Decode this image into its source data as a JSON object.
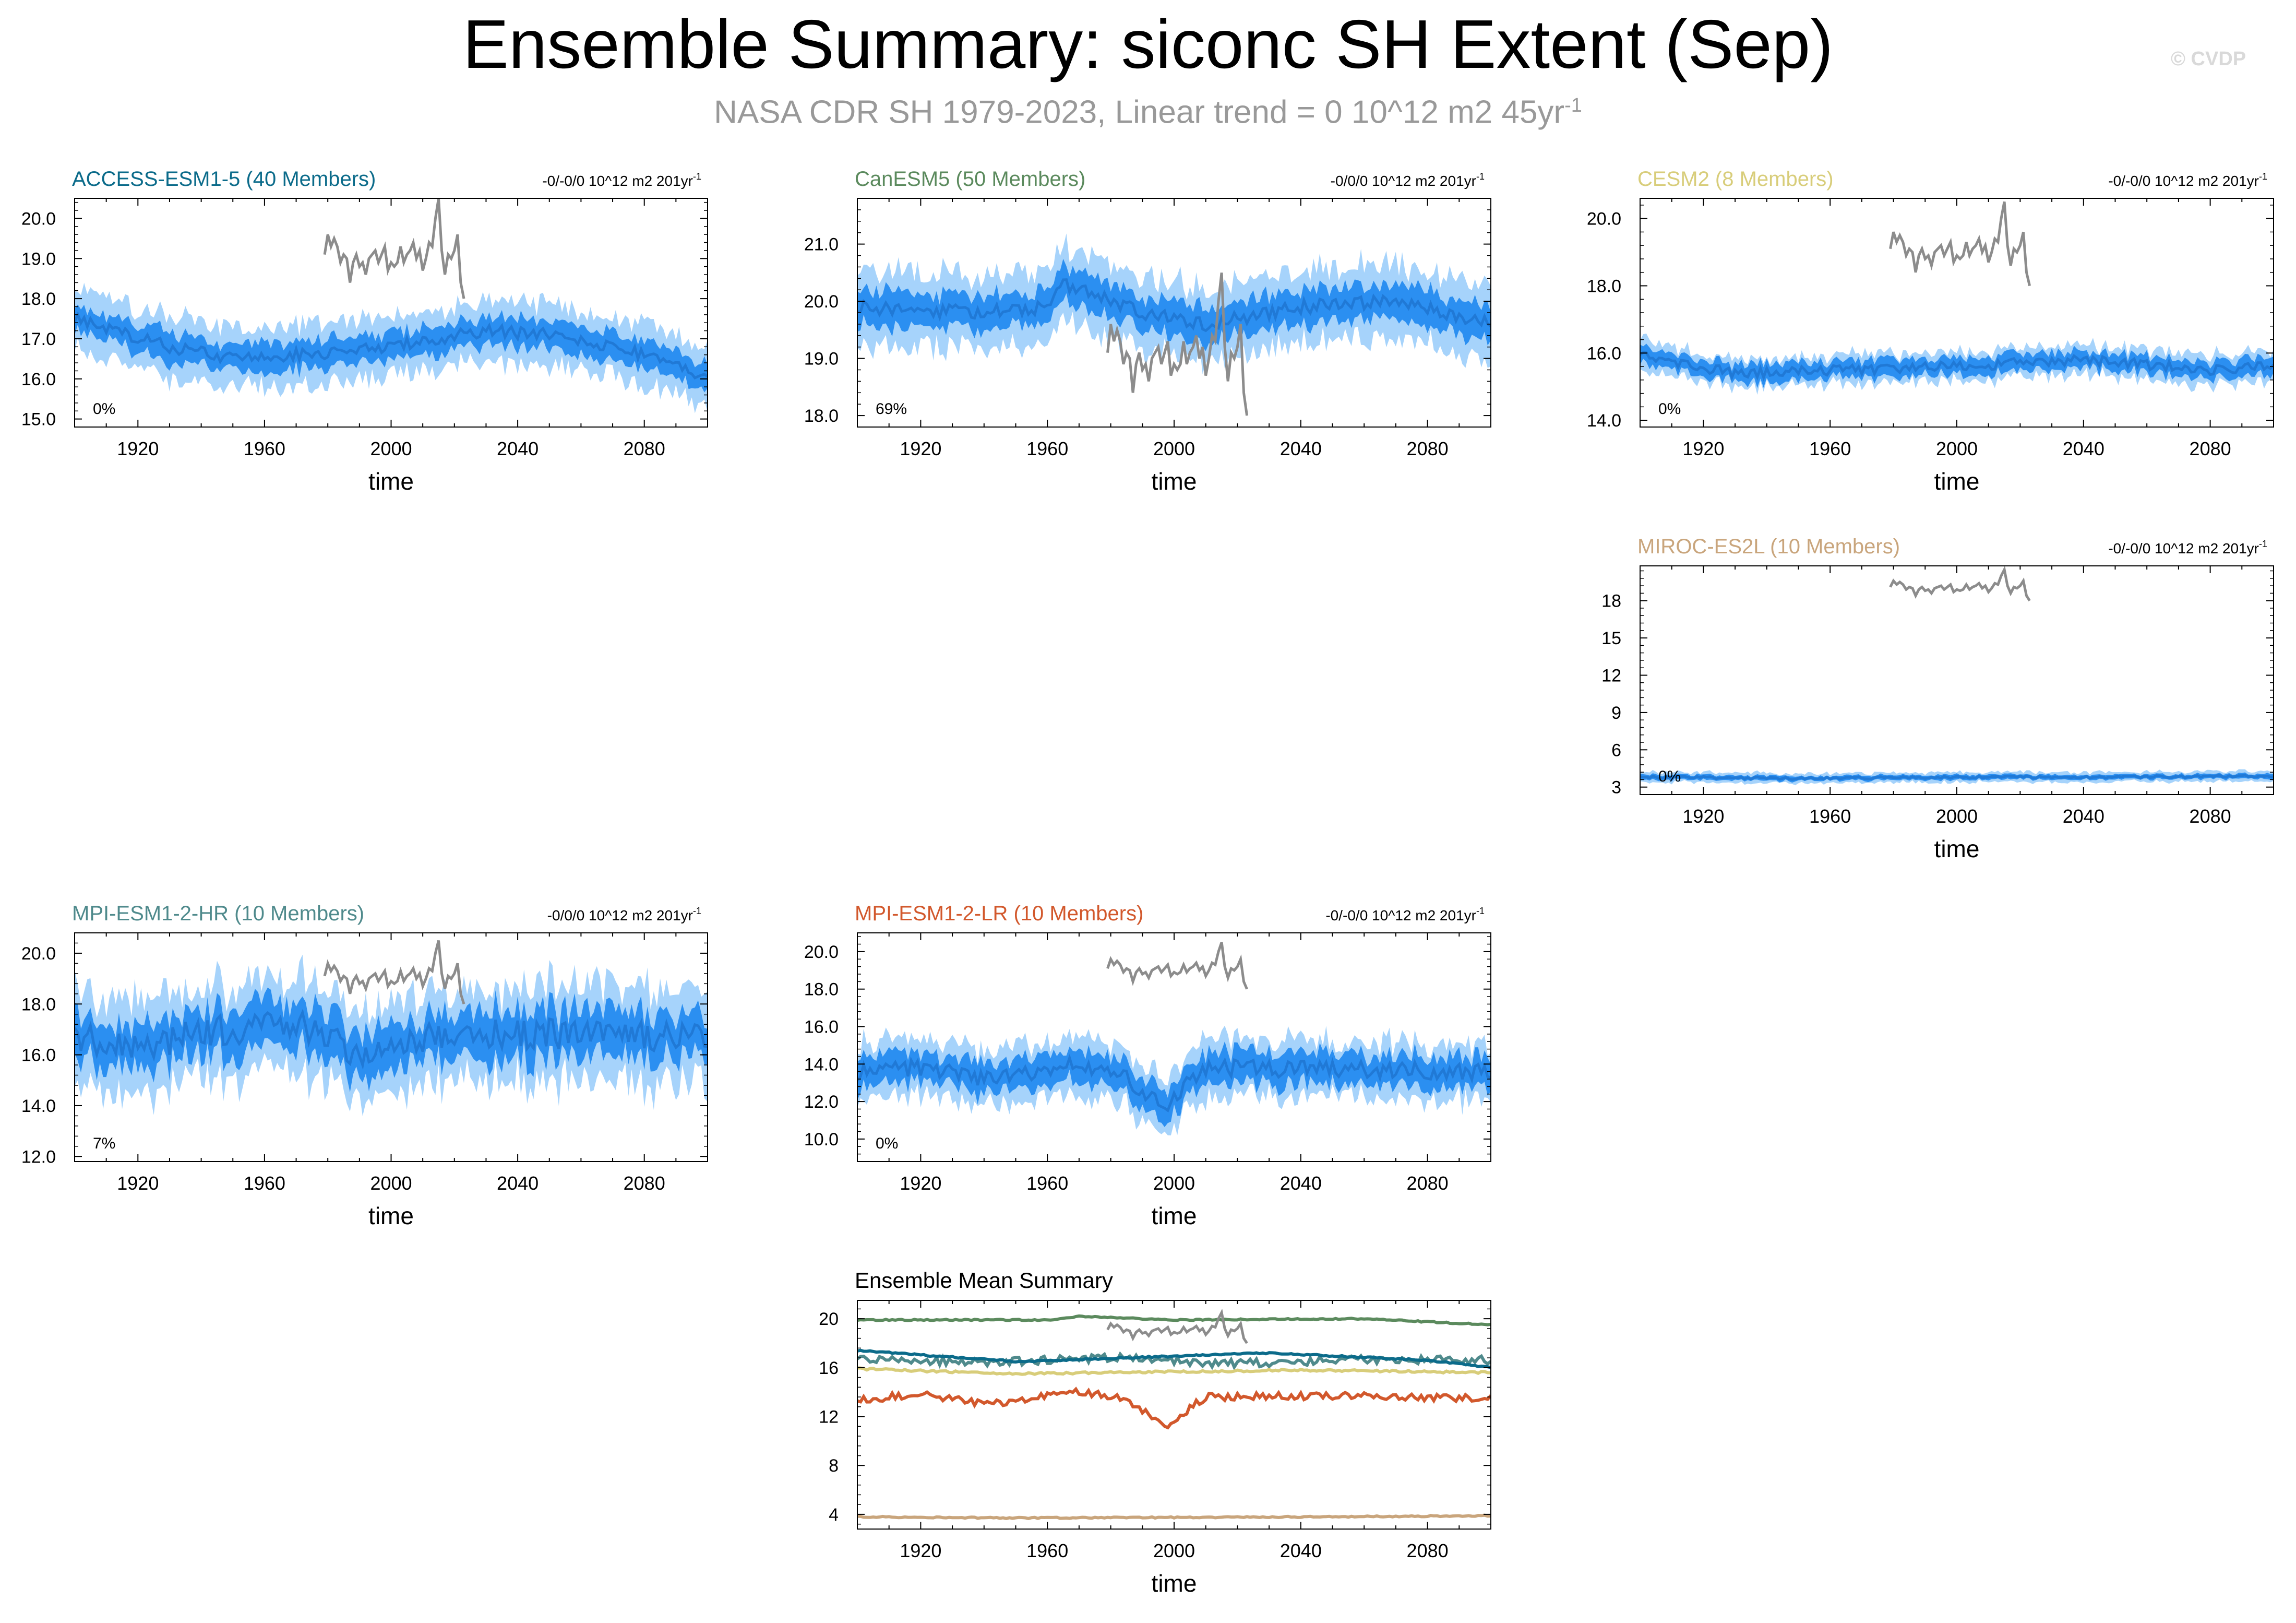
{
  "header": {
    "title": "Ensemble Summary: siconc SH Extent (Sep)",
    "subtitle": "NASA CDR SH 1979-2023, Linear trend = 0 10^12 m2 45yr",
    "subtitle_sup": "-1",
    "copyright": "© CVDP"
  },
  "colors": {
    "band_outer": "#a6d3fb",
    "band_inner": "#2b8ff1",
    "mean": "#2079d6",
    "obs": "#8c8c8c",
    "ACCESS-ESM1-5": "#0b6b8a",
    "CanESM5": "#5b8a5d",
    "CESM2": "#d8cd7a",
    "MIROC-ES2L": "#c9a57c",
    "MPI-ESM1-2-HR": "#4f8a8c",
    "MPI-ESM1-2-LR": "#d2582c"
  },
  "chart_data": [
    {
      "type": "area",
      "model": "ACCESS-ESM1-5",
      "title": "ACCESS-ESM1-5 (40 Members)",
      "trend_label": "-0/-0/0 10^12 m2 201yr",
      "trend_sup": "-1",
      "pct_label": "0%",
      "xlabel": "time",
      "ylabel": "",
      "xlim": [
        1900,
        2100
      ],
      "ylim": [
        14.8,
        20.5
      ],
      "xticks": [
        1920,
        1960,
        2000,
        2040,
        2080
      ],
      "yticks": [
        15.0,
        16.0,
        17.0,
        18.0,
        19.0,
        20.0
      ],
      "ytick_labels": [
        "15.0",
        "16.0",
        "17.0",
        "18.0",
        "19.0",
        "20.0"
      ],
      "mean_anchors": [
        [
          1900,
          17.5
        ],
        [
          1930,
          16.8
        ],
        [
          1950,
          16.5
        ],
        [
          1990,
          16.7
        ],
        [
          2030,
          17.2
        ],
        [
          2050,
          17.1
        ],
        [
          2080,
          16.6
        ],
        [
          2100,
          16.0
        ]
      ],
      "spread_inner": 0.35,
      "spread_outer": 0.75,
      "noise_amp": 0.15,
      "obs": {
        "x0": 1979,
        "values": [
          19.1,
          19.6,
          19.3,
          19.5,
          19.3,
          18.9,
          19.1,
          19.0,
          18.4,
          18.9,
          19.1,
          18.8,
          18.9,
          18.6,
          19.0,
          19.1,
          19.2,
          18.9,
          19.1,
          19.3,
          18.7,
          18.9,
          18.8,
          18.9,
          19.3,
          18.9,
          19.1,
          19.2,
          19.4,
          19.0,
          19.2,
          18.7,
          19.0,
          19.4,
          19.3,
          20.0,
          20.5,
          19.2,
          18.6,
          19.1,
          19.0,
          19.2,
          19.6,
          18.4,
          18.0
        ]
      }
    },
    {
      "type": "area",
      "model": "CanESM5",
      "title": "CanESM5 (50 Members)",
      "trend_label": "-0/0/0 10^12 m2 201yr",
      "trend_sup": "-1",
      "pct_label": "69%",
      "xlabel": "time",
      "ylabel": "",
      "xlim": [
        1900,
        2100
      ],
      "ylim": [
        17.8,
        21.8
      ],
      "xticks": [
        1920,
        1960,
        2000,
        2040,
        2080
      ],
      "yticks": [
        18.0,
        19.0,
        20.0,
        21.0
      ],
      "ytick_labels": [
        "18.0",
        "19.0",
        "20.0",
        "21.0"
      ],
      "mean_anchors": [
        [
          1900,
          19.9
        ],
        [
          1940,
          19.8
        ],
        [
          1960,
          19.9
        ],
        [
          1965,
          20.3
        ],
        [
          1990,
          19.8
        ],
        [
          2010,
          19.6
        ],
        [
          2040,
          19.9
        ],
        [
          2070,
          20.0
        ],
        [
          2100,
          19.6
        ]
      ],
      "spread_inner": 0.3,
      "spread_outer": 0.65,
      "noise_amp": 0.12,
      "obs": {
        "x0": 1979,
        "values": [
          19.1,
          19.6,
          19.3,
          19.5,
          19.3,
          18.9,
          19.1,
          19.0,
          18.4,
          18.9,
          19.1,
          18.8,
          18.9,
          18.6,
          19.0,
          19.1,
          19.2,
          18.9,
          19.1,
          19.3,
          18.7,
          18.9,
          18.8,
          18.9,
          19.3,
          18.9,
          19.1,
          19.2,
          19.4,
          19.0,
          19.2,
          18.7,
          19.0,
          19.4,
          19.3,
          20.0,
          20.5,
          19.2,
          18.6,
          19.1,
          19.0,
          19.2,
          19.6,
          18.4,
          18.0
        ]
      }
    },
    {
      "type": "area",
      "model": "CESM2",
      "title": "CESM2 (8 Members)",
      "trend_label": "-0/-0/0 10^12 m2 201yr",
      "trend_sup": "-1",
      "pct_label": "0%",
      "xlabel": "time",
      "ylabel": "",
      "xlim": [
        1900,
        2100
      ],
      "ylim": [
        13.8,
        20.6
      ],
      "xticks": [
        1920,
        1960,
        2000,
        2040,
        2080
      ],
      "yticks": [
        14.0,
        16.0,
        18.0,
        20.0
      ],
      "ytick_labels": [
        "14.0",
        "16.0",
        "18.0",
        "20.0"
      ],
      "mean_anchors": [
        [
          1900,
          15.9
        ],
        [
          1930,
          15.4
        ],
        [
          1970,
          15.5
        ],
        [
          2000,
          15.6
        ],
        [
          2040,
          15.8
        ],
        [
          2080,
          15.5
        ],
        [
          2100,
          15.6
        ]
      ],
      "spread_inner": 0.25,
      "spread_outer": 0.45,
      "noise_amp": 0.15,
      "obs": {
        "x0": 1979,
        "values": [
          19.1,
          19.6,
          19.3,
          19.5,
          19.3,
          18.9,
          19.1,
          19.0,
          18.4,
          18.9,
          19.1,
          18.8,
          18.9,
          18.6,
          19.0,
          19.1,
          19.2,
          18.9,
          19.1,
          19.3,
          18.7,
          18.9,
          18.8,
          18.9,
          19.3,
          18.9,
          19.1,
          19.2,
          19.4,
          19.0,
          19.2,
          18.7,
          19.0,
          19.4,
          19.3,
          20.0,
          20.5,
          19.2,
          18.6,
          19.1,
          19.0,
          19.2,
          19.6,
          18.4,
          18.0
        ]
      }
    },
    {
      "type": "area",
      "model": "MIROC-ES2L",
      "title": "MIROC-ES2L (10 Members)",
      "trend_label": "-0/-0/0 10^12 m2 201yr",
      "trend_sup": "-1",
      "pct_label": "0%",
      "xlabel": "time",
      "ylabel": "",
      "xlim": [
        1900,
        2100
      ],
      "ylim": [
        2.4,
        20.8
      ],
      "xticks": [
        1920,
        1960,
        2000,
        2040,
        2080
      ],
      "yticks": [
        3,
        6,
        9,
        12,
        15,
        18
      ],
      "ytick_labels": [
        "3",
        "6",
        "9",
        "12",
        "15",
        "18"
      ],
      "mean_anchors": [
        [
          1900,
          3.8
        ],
        [
          1950,
          3.7
        ],
        [
          2000,
          3.8
        ],
        [
          2050,
          3.8
        ],
        [
          2100,
          3.9
        ]
      ],
      "spread_inner": 0.2,
      "spread_outer": 0.4,
      "noise_amp": 0.1,
      "obs": {
        "x0": 1979,
        "values": [
          19.1,
          19.6,
          19.3,
          19.5,
          19.3,
          18.9,
          19.1,
          19.0,
          18.4,
          18.9,
          19.1,
          18.8,
          18.9,
          18.6,
          19.0,
          19.1,
          19.2,
          18.9,
          19.1,
          19.3,
          18.7,
          18.9,
          18.8,
          18.9,
          19.3,
          18.9,
          19.1,
          19.2,
          19.4,
          19.0,
          19.2,
          18.7,
          19.0,
          19.4,
          19.3,
          20.0,
          20.5,
          19.2,
          18.6,
          19.1,
          19.0,
          19.2,
          19.6,
          18.4,
          18.0
        ]
      }
    },
    {
      "type": "area",
      "model": "MPI-ESM1-2-HR",
      "title": "MPI-ESM1-2-HR (10 Members)",
      "trend_label": "-0/0/0 10^12 m2 201yr",
      "trend_sup": "-1",
      "pct_label": "7%",
      "xlabel": "time",
      "ylabel": "",
      "xlim": [
        1900,
        2100
      ],
      "ylim": [
        11.8,
        20.8
      ],
      "xticks": [
        1920,
        1960,
        2000,
        2040,
        2080
      ],
      "yticks": [
        12.0,
        14.0,
        16.0,
        18.0,
        20.0
      ],
      "ytick_labels": [
        "12.0",
        "14.0",
        "16.0",
        "18.0",
        "20.0"
      ],
      "mean_anchors": [
        [
          1900,
          16.8
        ],
        [
          1920,
          16.2
        ],
        [
          1940,
          16.9
        ],
        [
          1970,
          17.2
        ],
        [
          1990,
          16.0
        ],
        [
          2020,
          16.9
        ],
        [
          2060,
          16.8
        ],
        [
          2100,
          16.6
        ]
      ],
      "spread_inner": 0.9,
      "spread_outer": 1.8,
      "noise_amp": 0.6,
      "obs": {
        "x0": 1979,
        "values": [
          19.1,
          19.6,
          19.3,
          19.5,
          19.3,
          18.9,
          19.1,
          19.0,
          18.4,
          18.9,
          19.1,
          18.8,
          18.9,
          18.6,
          19.0,
          19.1,
          19.2,
          18.9,
          19.1,
          19.3,
          18.7,
          18.9,
          18.8,
          18.9,
          19.3,
          18.9,
          19.1,
          19.2,
          19.4,
          19.0,
          19.2,
          18.7,
          19.0,
          19.4,
          19.3,
          20.0,
          20.5,
          19.2,
          18.6,
          19.1,
          19.0,
          19.2,
          19.6,
          18.4,
          18.0
        ]
      }
    },
    {
      "type": "area",
      "model": "MPI-ESM1-2-LR",
      "title": "MPI-ESM1-2-LR (10 Members)",
      "trend_label": "-0/-0/0 10^12 m2 201yr",
      "trend_sup": "-1",
      "pct_label": "0%",
      "xlabel": "time",
      "ylabel": "",
      "xlim": [
        1900,
        2100
      ],
      "ylim": [
        8.8,
        21.0
      ],
      "xticks": [
        1920,
        1960,
        2000,
        2040,
        2080
      ],
      "yticks": [
        10.0,
        12.0,
        14.0,
        16.0,
        18.0,
        20.0
      ],
      "ytick_labels": [
        "10.0",
        "12.0",
        "14.0",
        "16.0",
        "18.0",
        "20.0"
      ],
      "mean_anchors": [
        [
          1900,
          13.5
        ],
        [
          1920,
          13.8
        ],
        [
          1940,
          13.2
        ],
        [
          1970,
          14.0
        ],
        [
          1985,
          13.2
        ],
        [
          1997,
          11.8
        ],
        [
          2010,
          13.8
        ],
        [
          2050,
          13.7
        ],
        [
          2100,
          13.6
        ]
      ],
      "spread_inner": 0.8,
      "spread_outer": 1.5,
      "noise_amp": 0.45,
      "obs": {
        "x0": 1979,
        "values": [
          19.1,
          19.6,
          19.3,
          19.5,
          19.3,
          18.9,
          19.1,
          19.0,
          18.4,
          18.9,
          19.1,
          18.8,
          18.9,
          18.6,
          19.0,
          19.1,
          19.2,
          18.9,
          19.1,
          19.3,
          18.7,
          18.9,
          18.8,
          18.9,
          19.3,
          18.9,
          19.1,
          19.2,
          19.4,
          19.0,
          19.2,
          18.7,
          19.0,
          19.4,
          19.3,
          20.0,
          20.5,
          19.2,
          18.6,
          19.1,
          19.0,
          19.2,
          19.6,
          18.4,
          18.0
        ]
      }
    },
    {
      "type": "line",
      "model": "summary",
      "title": "Ensemble Mean Summary",
      "xlabel": "time",
      "ylabel": "",
      "xlim": [
        1900,
        2100
      ],
      "ylim": [
        2.8,
        21.5
      ],
      "xticks": [
        1920,
        1960,
        2000,
        2040,
        2080
      ],
      "yticks": [
        4,
        8,
        12,
        16,
        20
      ],
      "ytick_labels": [
        "4",
        "8",
        "12",
        "16",
        "20"
      ],
      "series": [
        {
          "name": "CanESM5",
          "anchors": [
            [
              1900,
              19.9
            ],
            [
              1960,
              19.9
            ],
            [
              1970,
              20.2
            ],
            [
              2000,
              19.9
            ],
            [
              2060,
              20.0
            ],
            [
              2100,
              19.5
            ]
          ],
          "noise_amp": 0.05
        },
        {
          "name": "MPI-ESM1-2-HR",
          "anchors": [
            [
              1900,
              16.8
            ],
            [
              1940,
              16.4
            ],
            [
              1980,
              16.8
            ],
            [
              2020,
              16.3
            ],
            [
              2060,
              16.7
            ],
            [
              2100,
              16.6
            ]
          ],
          "noise_amp": 0.35
        },
        {
          "name": "ACCESS-ESM1-5",
          "anchors": [
            [
              1900,
              17.4
            ],
            [
              1950,
              16.5
            ],
            [
              2030,
              17.2
            ],
            [
              2080,
              16.6
            ],
            [
              2100,
              16.0
            ]
          ],
          "noise_amp": 0.06
        },
        {
          "name": "CESM2",
          "anchors": [
            [
              1900,
              15.9
            ],
            [
              1950,
              15.5
            ],
            [
              2040,
              15.8
            ],
            [
              2100,
              15.6
            ]
          ],
          "noise_amp": 0.08
        },
        {
          "name": "MPI-ESM1-2-LR",
          "anchors": [
            [
              1900,
              13.3
            ],
            [
              1920,
              13.9
            ],
            [
              1940,
              13.0
            ],
            [
              1970,
              14.0
            ],
            [
              1985,
              13.4
            ],
            [
              1997,
              11.2
            ],
            [
              2010,
              13.6
            ],
            [
              2050,
              13.7
            ],
            [
              2100,
              13.5
            ]
          ],
          "noise_amp": 0.3
        },
        {
          "name": "MIROC-ES2L",
          "anchors": [
            [
              1900,
              3.8
            ],
            [
              1950,
              3.7
            ],
            [
              2050,
              3.8
            ],
            [
              2100,
              3.9
            ]
          ],
          "noise_amp": 0.05
        }
      ],
      "obs": {
        "x0": 1979,
        "values": [
          19.1,
          19.6,
          19.3,
          19.5,
          19.3,
          18.9,
          19.1,
          19.0,
          18.4,
          18.9,
          19.1,
          18.8,
          18.9,
          18.6,
          19.0,
          19.1,
          19.2,
          18.9,
          19.1,
          19.3,
          18.7,
          18.9,
          18.8,
          18.9,
          19.3,
          18.9,
          19.1,
          19.2,
          19.4,
          19.0,
          19.2,
          18.7,
          19.0,
          19.4,
          19.3,
          20.0,
          20.5,
          19.2,
          18.6,
          19.1,
          19.0,
          19.2,
          19.6,
          18.4,
          18.0
        ]
      }
    }
  ]
}
